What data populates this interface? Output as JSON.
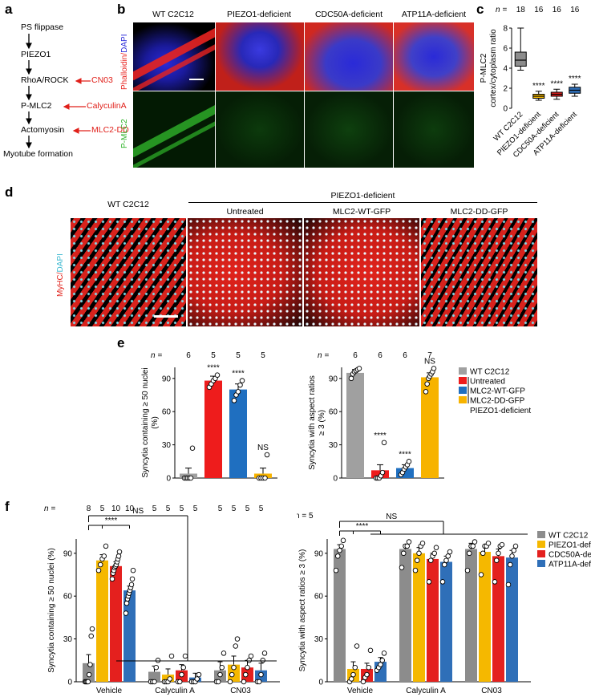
{
  "panels": {
    "a": {
      "letter": "a",
      "steps": [
        "PS flippase",
        "PIEZO1",
        "RhoA/ROCK",
        "P-MLC2",
        "Actomyosin",
        "Myotube formation"
      ],
      "inhibitors": [
        "CN03",
        "CalyculinA",
        "MLC2-DD"
      ]
    },
    "b": {
      "letter": "b",
      "columns": [
        "WT C2C12",
        "PIEZO1-deficient",
        "CDC50A-deficient",
        "ATP11A-deficient"
      ],
      "row_top_label_1": "Phalloidin/",
      "row_top_label_2": "DAPI",
      "row_bottom_label": "P-MLC2",
      "stain_colors": {
        "actin": "#e8231f",
        "dapi": "#2a2ad8",
        "pmlc2": "#2fb32a"
      }
    },
    "c": {
      "letter": "c"
    },
    "d": {
      "letter": "d",
      "group_label": "PIEZO1-deficient",
      "columns": [
        "WT C2C12",
        "Untreated",
        "MLC2-WT-GFP",
        "MLC2-DD-GFP"
      ],
      "side_label_1": "MyHC/",
      "side_label_2": "DAPI",
      "stain_colors": {
        "myhc": "#e0231c",
        "dapi": "#7fe0f0"
      }
    },
    "e": {
      "letter": "e"
    },
    "f": {
      "letter": "f"
    }
  },
  "chart_data": [
    {
      "id": "c",
      "type": "box",
      "n_prefix": "n = ",
      "ylabel_lines": [
        "P-MLC2",
        "cortex/cytoplasm ratio"
      ],
      "ylim": [
        0,
        8
      ],
      "yticks": [
        "0",
        "2",
        "4",
        "6",
        "8"
      ],
      "categories": [
        "WT C2C12",
        "PIEZO1-deficient",
        "CDC50A-deficient",
        "ATP11A-deficient"
      ],
      "n": [
        "18",
        "16",
        "16",
        "16"
      ],
      "significance": [
        "",
        "****",
        "****",
        "****"
      ],
      "colors": [
        "#8c8c8c",
        "#f5b800",
        "#e4201e",
        "#2f6fb8"
      ],
      "boxes": [
        {
          "min": 3.8,
          "q1": 4.2,
          "median": 4.8,
          "q3": 5.6,
          "max": 8.0
        },
        {
          "min": 0.8,
          "q1": 1.0,
          "median": 1.2,
          "q3": 1.4,
          "max": 1.7
        },
        {
          "min": 0.9,
          "q1": 1.2,
          "median": 1.4,
          "q3": 1.6,
          "max": 1.9
        },
        {
          "min": 1.2,
          "q1": 1.5,
          "median": 1.8,
          "q3": 2.1,
          "max": 2.4
        }
      ]
    },
    {
      "id": "e1",
      "type": "bar",
      "n_prefix": "n = ",
      "ylabel_lines": [
        "Syncytia containing ≥ 50 nuclei",
        "(%)"
      ],
      "ylim": [
        0,
        100
      ],
      "yticks": [
        "0",
        "30",
        "60",
        "90"
      ],
      "categories": [
        "WT C2C12",
        "Untreated",
        "MLC2-WT-GFP",
        "MLC2-DD-GFP"
      ],
      "n": [
        "6",
        "5",
        "5",
        "5"
      ],
      "significance": [
        "",
        "****",
        "****",
        "NS"
      ],
      "colors": [
        "#a0a0a0",
        "#ee1c1c",
        "#1f6fc0",
        "#f7b300"
      ],
      "values": [
        4,
        88,
        80,
        4
      ],
      "errors": [
        5,
        4,
        5,
        5
      ],
      "points": [
        [
          0,
          0,
          0,
          0,
          0,
          27
        ],
        [
          82,
          85,
          88,
          90,
          93
        ],
        [
          70,
          75,
          78,
          84,
          88
        ],
        [
          0,
          0,
          0,
          0,
          21
        ]
      ]
    },
    {
      "id": "e2",
      "type": "bar",
      "n_prefix": "n = ",
      "ylabel_lines": [
        "Syncytia with aspect ratios",
        "≥ 3 (%)"
      ],
      "ylim": [
        0,
        100
      ],
      "yticks": [
        "0",
        "30",
        "60",
        "90"
      ],
      "categories": [
        "WT C2C12",
        "Untreated",
        "MLC2-WT-GFP",
        "MLC2-DD-GFP"
      ],
      "n": [
        "6",
        "6",
        "6",
        "7"
      ],
      "significance": [
        "",
        "****",
        "****",
        "NS"
      ],
      "colors": [
        "#a0a0a0",
        "#ee1c1c",
        "#1f6fc0",
        "#f7b300"
      ],
      "values": [
        95,
        7,
        9,
        91
      ],
      "errors": [
        3,
        5,
        3,
        4
      ],
      "points": [
        [
          90,
          94,
          96,
          97,
          98,
          99
        ],
        [
          0,
          0,
          0,
          2,
          5,
          32
        ],
        [
          3,
          5,
          8,
          10,
          12,
          15
        ],
        [
          78,
          85,
          90,
          92,
          94,
          96,
          99
        ]
      ],
      "legend": {
        "entries": [
          "WT C2C12",
          "Untreated",
          "MLC2-WT-GFP",
          "MLC2-DD-GFP"
        ],
        "colors": [
          "#a0a0a0",
          "#ee1c1c",
          "#1f6fc0",
          "#f7b300"
        ],
        "group_label": "PIEZO1-deficient"
      }
    },
    {
      "id": "f1",
      "type": "bar",
      "n_prefix": "n = ",
      "ylabel": "Syncytia containing ≥ 50 nuclei (%)",
      "ylim": [
        0,
        100
      ],
      "yticks": [
        "0",
        "30",
        "60",
        "90"
      ],
      "groups": [
        "Vehicle",
        "Calyculin A",
        "CN03"
      ],
      "series_names": [
        "WT C2C12",
        "PIEZO1-deficient",
        "CDC50A-deficient",
        "ATP11A-deficient"
      ],
      "colors": [
        "#8c8c8c",
        "#f5b800",
        "#e4201e",
        "#2f6fb8"
      ],
      "n": [
        "8",
        "5",
        "10",
        "10",
        "5",
        "5",
        "5",
        "5",
        "5",
        "5",
        "5",
        "5"
      ],
      "values": [
        [
          13,
          85,
          81,
          64
        ],
        [
          7,
          5,
          8,
          3
        ],
        [
          8,
          12,
          10,
          8
        ]
      ],
      "errors": [
        [
          6,
          4,
          3,
          3
        ],
        [
          4,
          4,
          4,
          3
        ],
        [
          6,
          6,
          5,
          5
        ]
      ],
      "points": [
        [
          [
            0,
            0,
            0,
            0,
            5,
            12,
            32,
            37
          ],
          [
            78,
            82,
            86,
            88,
            95
          ],
          [
            72,
            76,
            78,
            80,
            81,
            82,
            84,
            86,
            88,
            91
          ],
          [
            48,
            55,
            58,
            60,
            62,
            64,
            66,
            68,
            72,
            78
          ]
        ],
        [
          [
            0,
            0,
            0,
            10,
            15
          ],
          [
            0,
            0,
            0,
            2,
            18
          ],
          [
            0,
            0,
            5,
            10,
            18
          ],
          [
            0,
            0,
            0,
            2,
            5
          ]
        ],
        [
          [
            0,
            0,
            5,
            10,
            20
          ],
          [
            0,
            5,
            10,
            25,
            30
          ],
          [
            0,
            5,
            10,
            15,
            18
          ],
          [
            0,
            0,
            5,
            15,
            20
          ]
        ]
      ],
      "significance": [
        "****",
        "NS"
      ]
    },
    {
      "id": "f2",
      "type": "bar",
      "n_prefix": "n = ",
      "n_label": "5",
      "ylabel": "Syncytia with aspect ratios ≥ 3 (%)",
      "ylim": [
        0,
        100
      ],
      "yticks": [
        "0",
        "30",
        "60",
        "90"
      ],
      "groups": [
        "Vehicle",
        "Calyculin A",
        "CN03"
      ],
      "series_names": [
        "WT C2C12",
        "PIEZO1-deficient",
        "CDC50A-deficient",
        "ATP11A-deficient"
      ],
      "colors": [
        "#8c8c8c",
        "#f5b800",
        "#e4201e",
        "#2f6fb8"
      ],
      "values": [
        [
          93,
          9,
          9,
          14
        ],
        [
          93,
          90,
          86,
          84
        ],
        [
          93,
          91,
          88,
          87
        ]
      ],
      "errors": [
        [
          3,
          5,
          4,
          3
        ],
        [
          3,
          4,
          4,
          4
        ],
        [
          4,
          4,
          5,
          5
        ]
      ],
      "points": [
        [
          [
            78,
            88,
            92,
            95,
            99
          ],
          [
            0,
            2,
            5,
            10,
            25
          ],
          [
            0,
            3,
            5,
            10,
            22
          ],
          [
            8,
            10,
            12,
            15,
            20
          ]
        ],
        [
          [
            80,
            90,
            95,
            95,
            98
          ],
          [
            78,
            85,
            90,
            95,
            97
          ],
          [
            70,
            85,
            88,
            90,
            94
          ],
          [
            70,
            82,
            85,
            88,
            91
          ]
        ],
        [
          [
            78,
            90,
            95,
            95,
            98
          ],
          [
            75,
            90,
            95,
            95,
            97
          ],
          [
            70,
            85,
            90,
            95,
            96
          ],
          [
            68,
            82,
            88,
            92,
            95
          ]
        ]
      ],
      "significance": [
        "****",
        "NS"
      ],
      "legend": {
        "entries": [
          "WT C2C12",
          "PIEZO1-deficient",
          "CDC50A-deficient",
          "ATP11A-deficient"
        ],
        "colors": [
          "#8c8c8c",
          "#f5b800",
          "#e4201e",
          "#2f6fb8"
        ]
      }
    }
  ]
}
